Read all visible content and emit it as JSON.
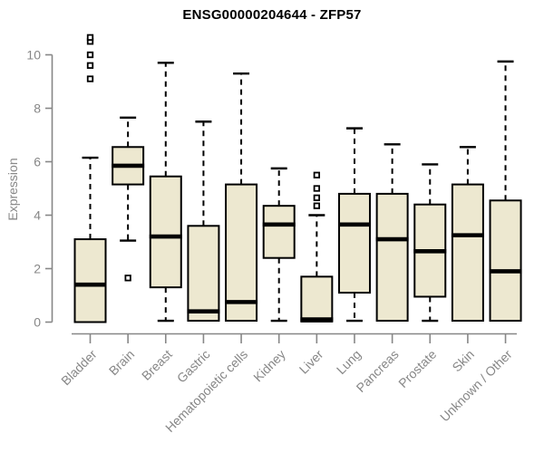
{
  "chart_data": {
    "type": "boxplot",
    "title": "ENSG00000204644 - ZFP57",
    "ylabel": "Expression",
    "xlabel": "",
    "ylim": [
      0,
      10.6
    ],
    "yticks": [
      0,
      2,
      4,
      6,
      8,
      10
    ],
    "grid": false,
    "legend": "none",
    "colors": {
      "box_fill": "#EDE8D0",
      "box_stroke": "#000000",
      "axis": "#878787",
      "title": "#000000",
      "outlier_fill": "#ffffff"
    },
    "categories": [
      "Bladder",
      "Brain",
      "Breast",
      "Gastric",
      "Hematopoietic cells",
      "Kidney",
      "Liver",
      "Lung",
      "Pancreas",
      "Prostate",
      "Skin",
      "Unknown / Other"
    ],
    "series": [
      {
        "category": "Bladder",
        "whisker_low": 0.0,
        "q1": 0.0,
        "median": 1.4,
        "q3": 3.1,
        "whisker_high": 6.15,
        "outliers": [
          9.1,
          9.6,
          10.0,
          10.5,
          10.65
        ]
      },
      {
        "category": "Brain",
        "whisker_low": 3.05,
        "q1": 5.15,
        "median": 5.85,
        "q3": 6.55,
        "whisker_high": 7.65,
        "outliers": [
          1.65
        ]
      },
      {
        "category": "Breast",
        "whisker_low": 0.05,
        "q1": 1.3,
        "median": 3.2,
        "q3": 5.45,
        "whisker_high": 9.7,
        "outliers": []
      },
      {
        "category": "Gastric",
        "whisker_low": 0.05,
        "q1": 0.05,
        "median": 0.4,
        "q3": 3.6,
        "whisker_high": 7.5,
        "outliers": []
      },
      {
        "category": "Hematopoietic cells",
        "whisker_low": 0.05,
        "q1": 0.05,
        "median": 0.75,
        "q3": 5.15,
        "whisker_high": 9.3,
        "outliers": []
      },
      {
        "category": "Kidney",
        "whisker_low": 0.05,
        "q1": 2.4,
        "median": 3.65,
        "q3": 4.35,
        "whisker_high": 5.75,
        "outliers": []
      },
      {
        "category": "Liver",
        "whisker_low": 0.02,
        "q1": 0.02,
        "median": 0.1,
        "q3": 1.7,
        "whisker_high": 4.0,
        "outliers": [
          4.35,
          4.65,
          5.0,
          5.5
        ]
      },
      {
        "category": "Lung",
        "whisker_low": 0.05,
        "q1": 1.1,
        "median": 3.65,
        "q3": 4.8,
        "whisker_high": 7.25,
        "outliers": []
      },
      {
        "category": "Pancreas",
        "whisker_low": 0.05,
        "q1": 0.05,
        "median": 3.1,
        "q3": 4.8,
        "whisker_high": 6.65,
        "outliers": []
      },
      {
        "category": "Prostate",
        "whisker_low": 0.05,
        "q1": 0.95,
        "median": 2.65,
        "q3": 4.4,
        "whisker_high": 5.9,
        "outliers": []
      },
      {
        "category": "Skin",
        "whisker_low": 0.05,
        "q1": 0.05,
        "median": 3.25,
        "q3": 5.15,
        "whisker_high": 6.55,
        "outliers": []
      },
      {
        "category": "Unknown / Other",
        "whisker_low": 0.05,
        "q1": 0.05,
        "median": 1.9,
        "q3": 4.55,
        "whisker_high": 9.75,
        "outliers": []
      }
    ]
  }
}
